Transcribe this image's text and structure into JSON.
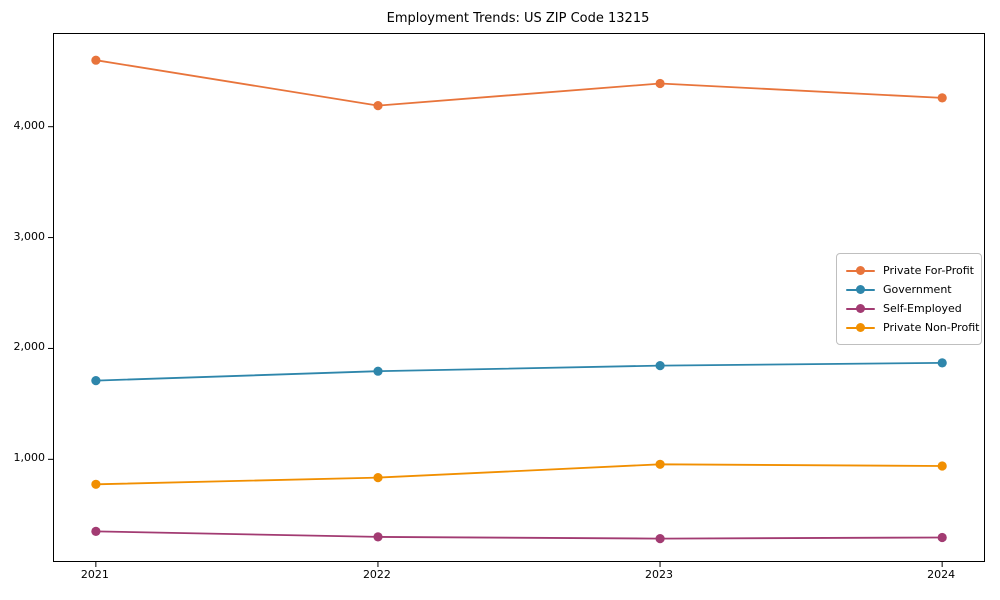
{
  "chart_data": {
    "type": "line",
    "title": "Employment Trends: US ZIP Code 13215",
    "categories": [
      "2021",
      "2022",
      "2023",
      "2024"
    ],
    "series": [
      {
        "name": "Private For-Profit",
        "color": "#E8743B",
        "values": [
          4600,
          4190,
          4390,
          4260
        ]
      },
      {
        "name": "Government",
        "color": "#2E86AB",
        "values": [
          1710,
          1795,
          1845,
          1870
        ]
      },
      {
        "name": "Self-Employed",
        "color": "#A23B72",
        "values": [
          350,
          300,
          285,
          295
        ]
      },
      {
        "name": "Private Non-Profit",
        "color": "#F18F01",
        "values": [
          775,
          835,
          955,
          940
        ]
      }
    ],
    "yticks": [
      {
        "value": 1000,
        "label": "1,000"
      },
      {
        "value": 2000,
        "label": "2,000"
      },
      {
        "value": 3000,
        "label": "3,000"
      },
      {
        "value": 4000,
        "label": "4,000"
      }
    ],
    "ylim": [
      83,
      4836
    ],
    "grid": false,
    "legend_position": "right-center",
    "marker": "circle",
    "axis_color": "#000000"
  }
}
